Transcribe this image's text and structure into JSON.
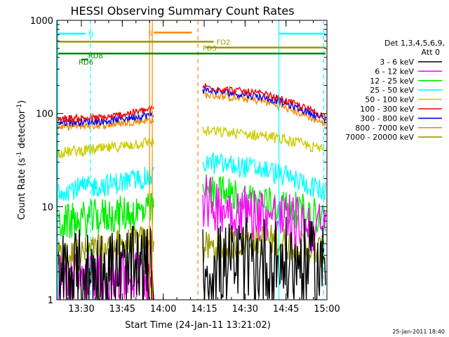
{
  "chart_data": {
    "type": "line",
    "title": "HESSI Observing Summary Count Rates",
    "xlabel": "Start Time (24-Jan-11 13:21:02)",
    "ylabel": "Count Rate (s",
    "ylabel_sup": "-1",
    "ylabel_mid": " detector",
    "ylabel_end": ")",
    "y_scale": "log",
    "ylim": [
      1,
      1000
    ],
    "y_ticks": [
      {
        "value": 1,
        "label": "1"
      },
      {
        "value": 10,
        "label": "10"
      },
      {
        "value": 100,
        "label": "100"
      },
      {
        "value": 1000,
        "label": "1000"
      }
    ],
    "xlim_min": [
      801,
      900
    ],
    "x_ticks": [
      {
        "min": 810,
        "label": "13:30"
      },
      {
        "min": 825,
        "label": "13:45"
      },
      {
        "min": 840,
        "label": "14:00"
      },
      {
        "min": 855,
        "label": "14:15"
      },
      {
        "min": 870,
        "label": "14:30"
      },
      {
        "min": 885,
        "label": "14:45"
      },
      {
        "min": 900,
        "label": "15:00"
      }
    ],
    "legend_header": [
      "Det 1,3,4,5,6,9,",
      "Att 0"
    ],
    "series": [
      {
        "name": "3 - 6 keV",
        "color": "#000000",
        "a": [
          1.8,
          1.9,
          2.0
        ],
        "b": [
          2.0,
          2.6,
          2.2
        ],
        "noise": 0.5
      },
      {
        "name": "6 - 12 keV",
        "color": "#ff00ff",
        "a": [
          1.6,
          1.7,
          1.8
        ],
        "b": [
          11.0,
          8.0,
          5.5
        ],
        "noise": 0.3
      },
      {
        "name": "12 - 25 keV",
        "color": "#00ee00",
        "a": [
          6.5,
          8.0,
          9.0
        ],
        "b": [
          15.0,
          11.0,
          7.5
        ],
        "noise": 0.2
      },
      {
        "name": "25 - 50 keV",
        "color": "#00ffff",
        "a": [
          15.0,
          17.0,
          21.0
        ],
        "b": [
          30.0,
          25.0,
          14.0
        ],
        "noise": 0.12
      },
      {
        "name": "50 - 100 keV",
        "color": "#cccc00",
        "a": [
          38.0,
          42.0,
          50.0
        ],
        "b": [
          65.0,
          58.0,
          40.0
        ],
        "noise": 0.06
      },
      {
        "name": "100 - 300 keV",
        "color": "#ee0000",
        "a": [
          88.0,
          90.0,
          112.0
        ],
        "b": [
          195.0,
          160.0,
          92.0
        ],
        "noise": 0.04
      },
      {
        "name": "300 - 800 keV",
        "color": "#0000ee",
        "a": [
          80.0,
          83.0,
          98.0
        ],
        "b": [
          180.0,
          150.0,
          85.0
        ],
        "noise": 0.04
      },
      {
        "name": "800 - 7000 keV",
        "color": "#ff8800",
        "a": [
          72.0,
          75.0,
          86.0
        ],
        "b": [
          160.0,
          135.0,
          76.0
        ],
        "noise": 0.04
      },
      {
        "name": "7000 - 20000 keV",
        "color": "#999900",
        "a": [
          2.8,
          3.5,
          4.5
        ],
        "b": [
          3.5,
          4.5,
          3.2
        ],
        "noise": 0.18
      }
    ],
    "segments_min": {
      "a": [
        801.5,
        836.5
      ],
      "b": [
        854.5,
        899.5
      ]
    },
    "flag_bars": [
      {
        "label": "N",
        "color": "#00ffff",
        "y": 720,
        "segs": [
          [
            801.5,
            811.5
          ],
          [
            882.5,
            899.5
          ]
        ],
        "label_min": 812.5,
        "label_y": 720
      },
      {
        "label": "S",
        "color": "#ff8800",
        "y": 740,
        "segs": [
          [
            836.5,
            850.5
          ]
        ],
        "label_min": 834.5,
        "label_y": 740
      },
      {
        "label": "FD2",
        "color": "#999900",
        "y": 590,
        "segs": [
          [
            801.5,
            858.5
          ]
        ],
        "label_min": 859.5,
        "label_y": 590
      },
      {
        "label": "FD3",
        "color": "#999900",
        "y": 510,
        "segs": [
          [
            855.5,
            899.5
          ]
        ],
        "label_min": 854.5,
        "label_y": 510
      },
      {
        "label": "RD6",
        "color": "#008800",
        "y": 440,
        "segs": [
          [
            801.5,
            899.5
          ]
        ],
        "label_min": 809.0,
        "label_y": 360
      },
      {
        "label": "RD8",
        "color": "#008800",
        "y": 380,
        "segs": [
          [
            810.0,
            812.5
          ]
        ],
        "label_min": 812.5,
        "label_y": 420
      }
    ],
    "vlines": [
      {
        "min": 801.3,
        "color": "#00ffff",
        "dashed": false
      },
      {
        "min": 813.3,
        "color": "#00ffff",
        "dashed": true
      },
      {
        "min": 835.0,
        "color": "#ff8800",
        "dashed": false
      },
      {
        "min": 836.0,
        "color": "#ff8800",
        "dashed": false
      },
      {
        "min": 852.7,
        "color": "#ff8800",
        "dashed": true
      },
      {
        "min": 882.4,
        "color": "#00ffff",
        "dashed": false
      },
      {
        "min": 898.8,
        "color": "#00ffff",
        "dashed": true
      }
    ]
  },
  "footer": {
    "timestamp": "25-Jan-2011 18:40"
  }
}
